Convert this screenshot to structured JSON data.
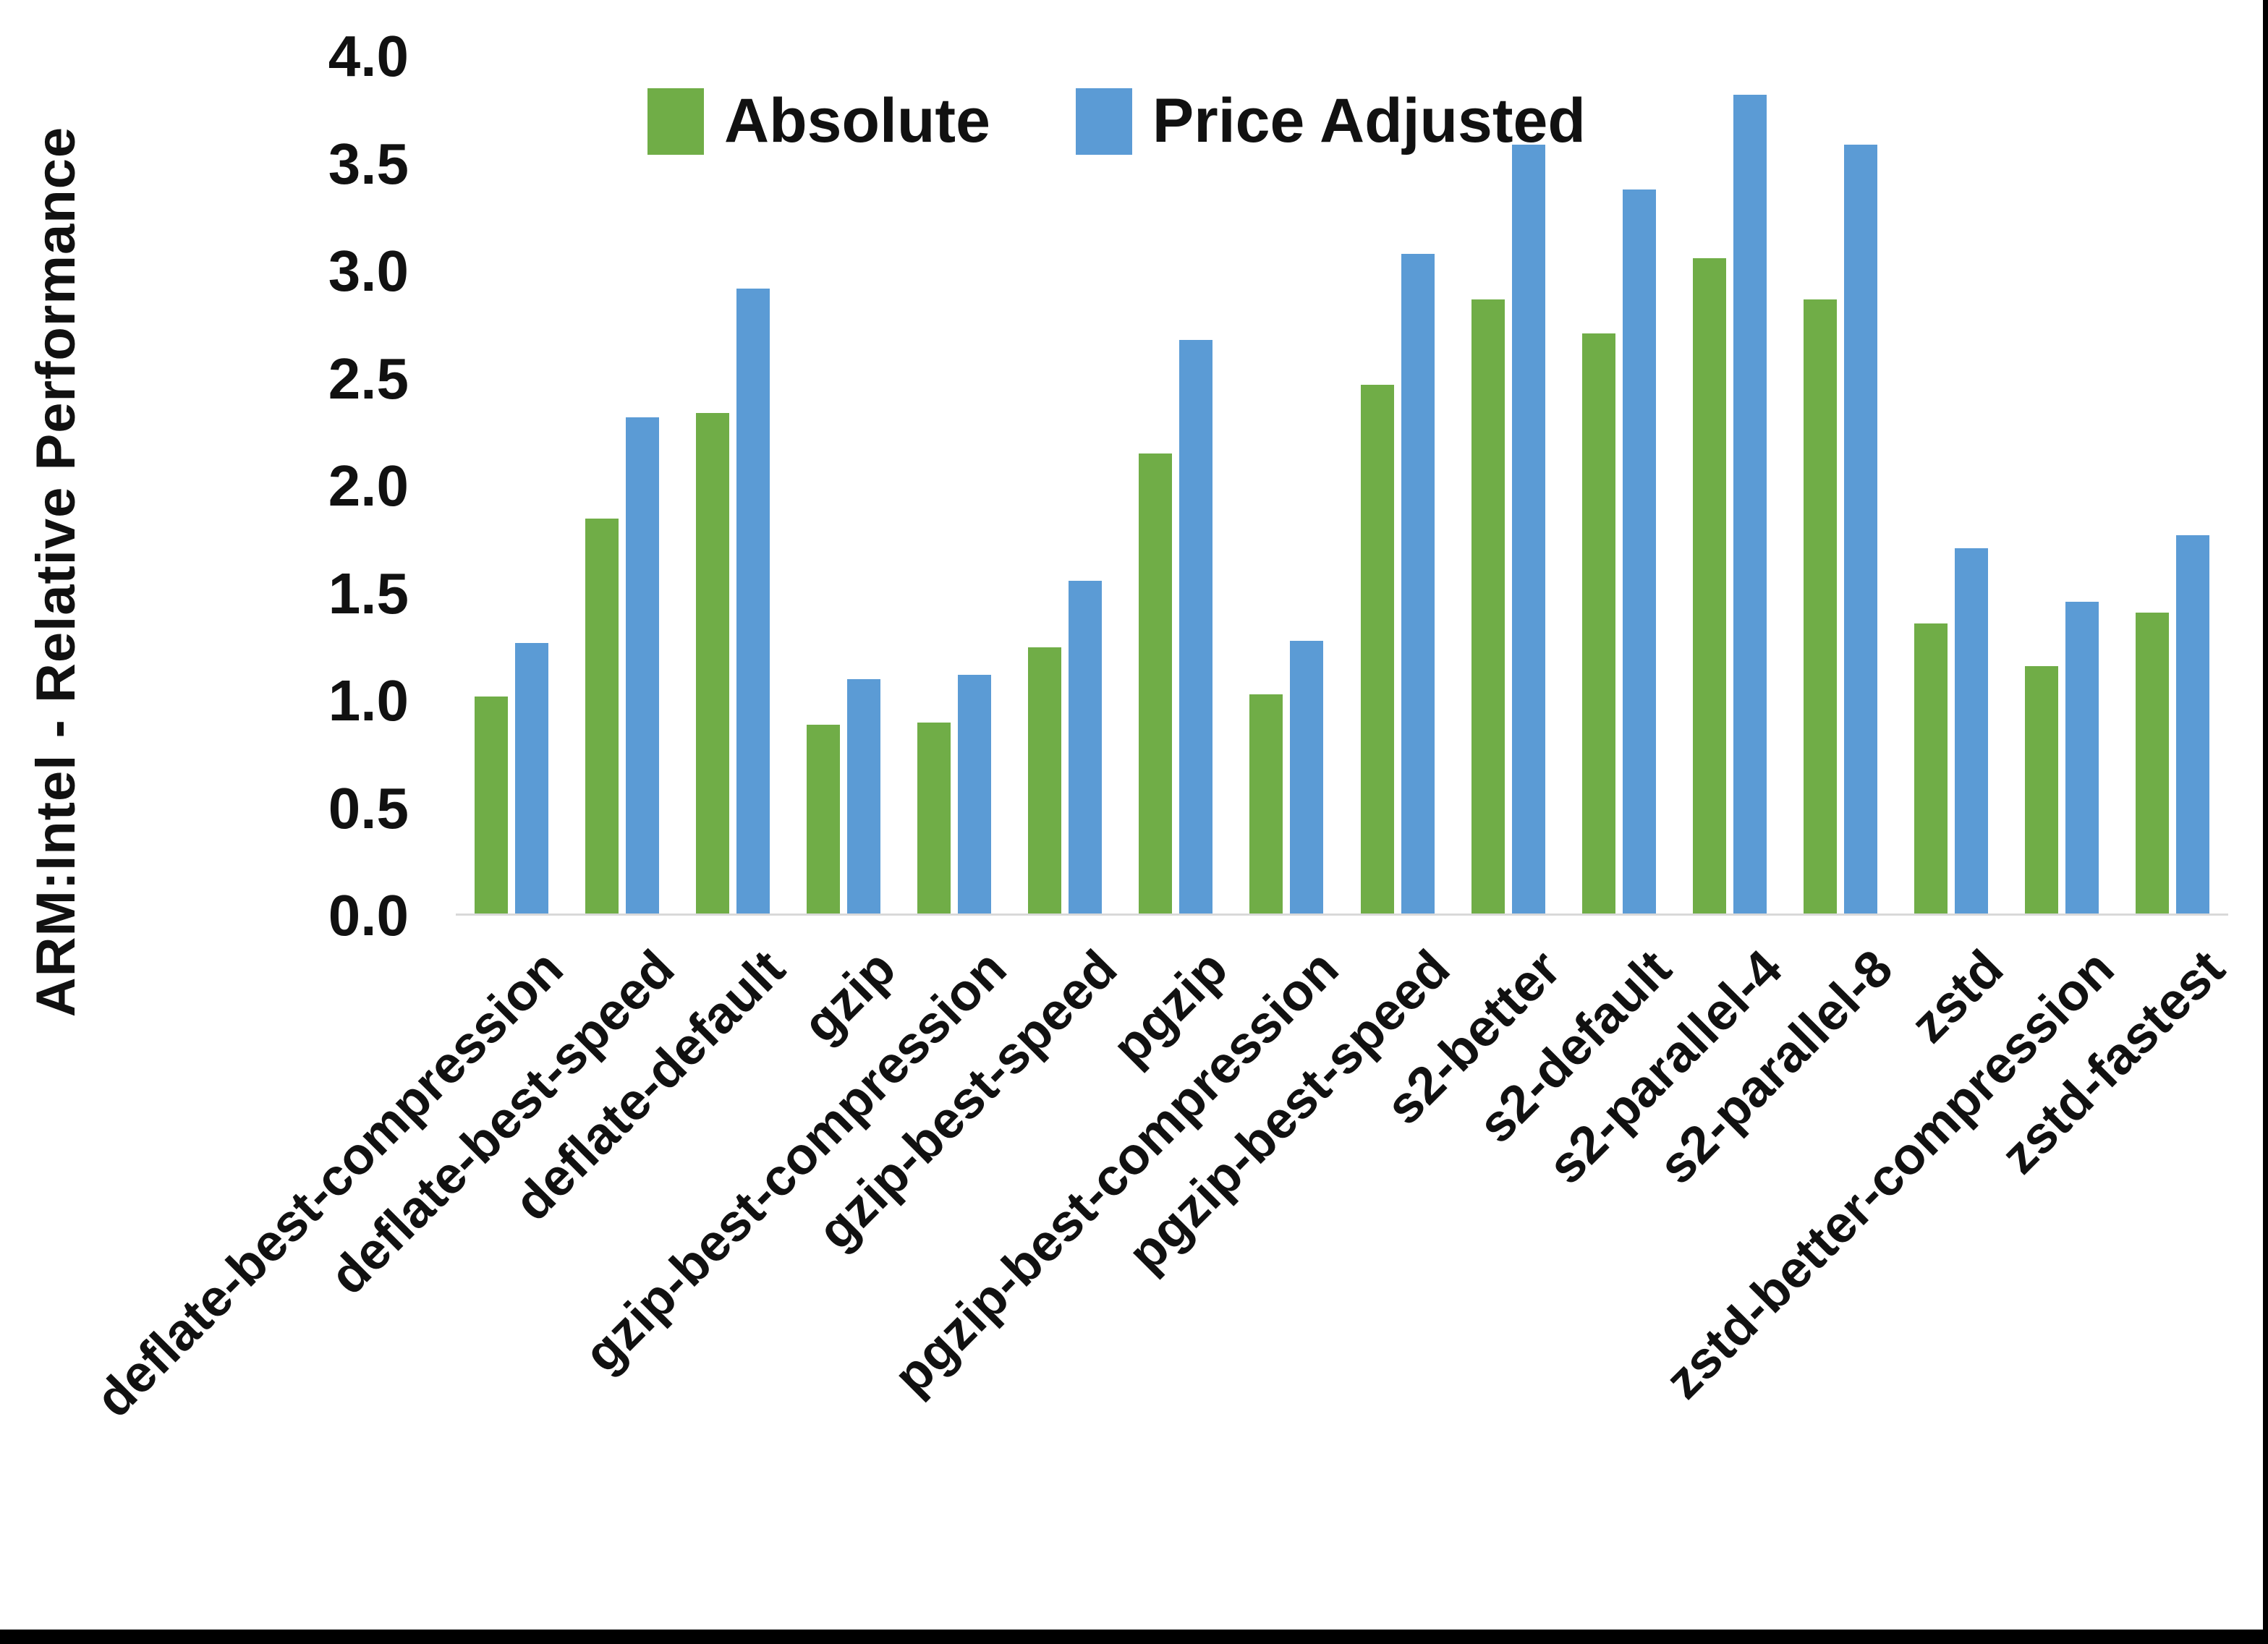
{
  "y_axis": {
    "label": "ARM:Intel - Relative Performance",
    "min": 0,
    "max": 4,
    "step": 0.5,
    "tick_labels": [
      "4.0",
      "3.5",
      "3.0",
      "2.5",
      "2.0",
      "1.5",
      "1.0",
      "0.5",
      "0.0"
    ]
  },
  "legend": {
    "position": "top-center",
    "items": [
      {
        "label": "Absolute",
        "color": "#70AD47"
      },
      {
        "label": "Price Adjusted",
        "color": "#5B9BD5"
      }
    ]
  },
  "chart_data": {
    "type": "bar",
    "title": "",
    "xlabel": "",
    "ylabel": "ARM:Intel - Relative Performance",
    "ylim": [
      0,
      4
    ],
    "ytick_step": 0.5,
    "grid": false,
    "legend_position": "top-center",
    "categories": [
      "deflate-best-compression",
      "deflate-best-speed",
      "deflate-default",
      "gzip",
      "gzip-best-compression",
      "gzip-best-speed",
      "pgzip",
      "pgzip-best-compression",
      "pgzip-best-speed",
      "s2-better",
      "s2-default",
      "s2-parallel-4",
      "s2-parallel-8",
      "zstd",
      "zstd-better-compression",
      "zstd-fastest"
    ],
    "series": [
      {
        "name": "Absolute",
        "color": "#70AD47",
        "values": [
          1.01,
          1.84,
          2.33,
          0.88,
          0.89,
          1.24,
          2.14,
          1.02,
          2.46,
          2.86,
          2.7,
          3.05,
          2.86,
          1.35,
          1.15,
          1.4
        ]
      },
      {
        "name": "Price Adjusted",
        "color": "#5B9BD5",
        "values": [
          1.26,
          2.31,
          2.91,
          1.09,
          1.11,
          1.55,
          2.67,
          1.27,
          3.07,
          3.58,
          3.37,
          3.81,
          3.58,
          1.7,
          1.45,
          1.76
        ]
      }
    ]
  },
  "frame": {
    "bottom_bar_color": "#000000",
    "right_bar_color": "#000000",
    "axis_line_color": "#D9D9D9"
  }
}
